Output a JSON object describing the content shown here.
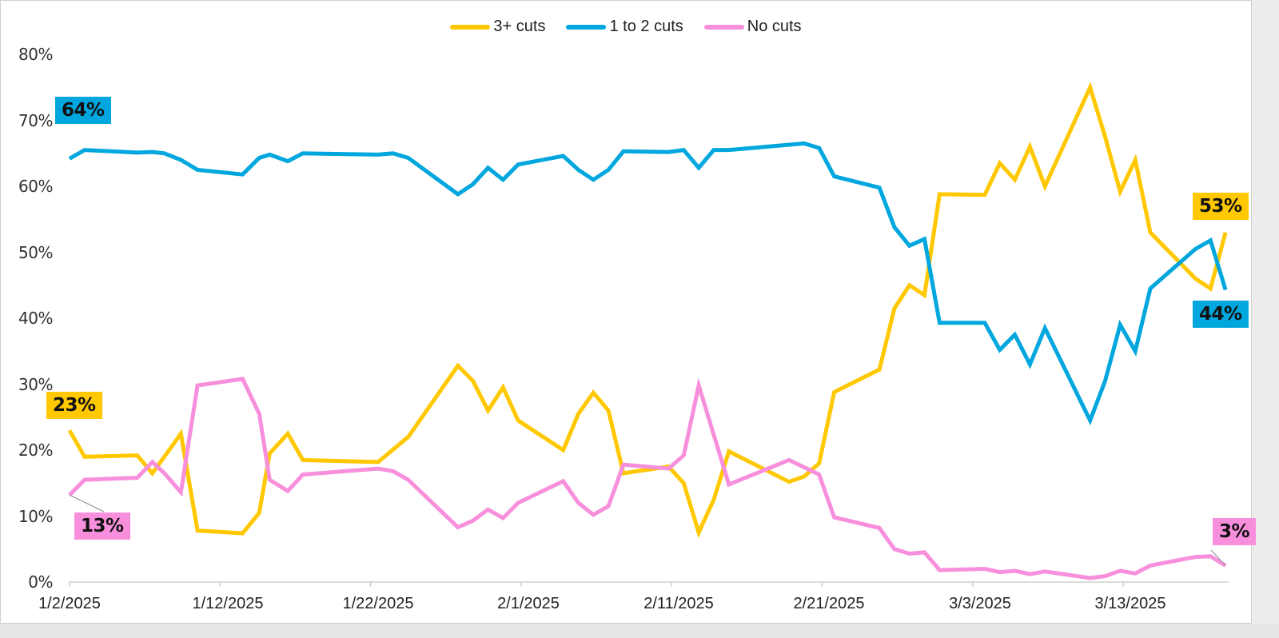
{
  "legend": {
    "items": [
      {
        "label": "3+ cuts",
        "color": "#FFC800"
      },
      {
        "label": "1 to 2 cuts",
        "color": "#00A7DE"
      },
      {
        "label": "No cuts",
        "color": "#F78FDC"
      }
    ]
  },
  "y_axis": {
    "ticks": [
      "80%",
      "70%",
      "60%",
      "50%",
      "40%",
      "30%",
      "20%",
      "10%",
      "0%"
    ]
  },
  "x_axis": {
    "ticks": [
      "1/2/2025",
      "1/12/2025",
      "1/22/2025",
      "2/1/2025",
      "2/11/2025",
      "2/21/2025",
      "3/3/2025",
      "3/13/2025"
    ]
  },
  "annotations": {
    "one_to_two_start": "64%",
    "three_plus_start": "23%",
    "no_cuts_start": "13%",
    "three_plus_end": "53%",
    "one_to_two_end": "44%",
    "no_cuts_end": "3%"
  },
  "chart_data": {
    "type": "line",
    "title": "",
    "xlabel": "",
    "ylabel": "",
    "ylim": [
      0,
      80
    ],
    "y_ticks": [
      0,
      10,
      20,
      30,
      40,
      50,
      60,
      70,
      80
    ],
    "x_tick_labels": [
      "1/2/2025",
      "1/12/2025",
      "1/22/2025",
      "2/1/2025",
      "2/11/2025",
      "2/21/2025",
      "3/3/2025",
      "3/13/2025"
    ],
    "legend_position": "top",
    "grid": false,
    "x_start_date": "1/2/2025",
    "x_unit": "days since 1/2/2025",
    "series": [
      {
        "name": "3+ cuts",
        "color": "#FFC800",
        "points": [
          [
            0,
            23
          ],
          [
            1,
            19
          ],
          [
            4.5,
            19.2
          ],
          [
            5.5,
            16.5
          ],
          [
            6.3,
            19
          ],
          [
            7.4,
            22.5
          ],
          [
            8.5,
            7.8
          ],
          [
            11.5,
            7.4
          ],
          [
            12.6,
            10.5
          ],
          [
            13.3,
            19.5
          ],
          [
            14.5,
            22.5
          ],
          [
            15.5,
            18.5
          ],
          [
            20.5,
            18.2
          ],
          [
            22.5,
            22
          ],
          [
            25.8,
            32.8
          ],
          [
            26.8,
            30.5
          ],
          [
            27.8,
            26
          ],
          [
            28.8,
            29.5
          ],
          [
            29.8,
            24.5
          ],
          [
            32.8,
            20
          ],
          [
            33.8,
            25.5
          ],
          [
            34.8,
            28.7
          ],
          [
            35.8,
            26
          ],
          [
            36.8,
            16.5
          ],
          [
            39.8,
            17.5
          ],
          [
            40.8,
            15
          ],
          [
            41.8,
            7.5
          ],
          [
            42.8,
            12.5
          ],
          [
            43.8,
            19.8
          ],
          [
            47.8,
            15.2
          ],
          [
            48.8,
            16
          ],
          [
            49.8,
            18
          ],
          [
            50.8,
            28.8
          ],
          [
            53.8,
            32.2
          ],
          [
            54.8,
            41.5
          ],
          [
            55.8,
            45
          ],
          [
            56.8,
            43.5
          ],
          [
            57.8,
            58.8
          ],
          [
            60.8,
            58.7
          ],
          [
            61.8,
            63.5
          ],
          [
            62.8,
            61
          ],
          [
            63.8,
            66
          ],
          [
            64.8,
            60
          ],
          [
            67.8,
            75
          ],
          [
            68.8,
            67.5
          ],
          [
            69.8,
            59.2
          ],
          [
            70.8,
            64
          ],
          [
            71.8,
            53
          ],
          [
            74.8,
            46
          ],
          [
            75.8,
            44.5
          ],
          [
            76.8,
            53
          ]
        ]
      },
      {
        "name": "1 to 2 cuts",
        "color": "#00A7DE",
        "points": [
          [
            0,
            64.2
          ],
          [
            1,
            65.5
          ],
          [
            4.5,
            65.1
          ],
          [
            5.5,
            65.2
          ],
          [
            6.3,
            65
          ],
          [
            7.4,
            64
          ],
          [
            8.5,
            62.5
          ],
          [
            11.5,
            61.8
          ],
          [
            12.6,
            64.3
          ],
          [
            13.3,
            64.8
          ],
          [
            14.5,
            63.8
          ],
          [
            15.5,
            65
          ],
          [
            20.5,
            64.8
          ],
          [
            21.5,
            65
          ],
          [
            22.5,
            64.3
          ],
          [
            25.8,
            58.8
          ],
          [
            26.8,
            60.3
          ],
          [
            27.8,
            62.8
          ],
          [
            28.8,
            61
          ],
          [
            29.8,
            63.3
          ],
          [
            32.8,
            64.6
          ],
          [
            33.8,
            62.5
          ],
          [
            34.8,
            61
          ],
          [
            35.8,
            62.5
          ],
          [
            36.8,
            65.3
          ],
          [
            39.8,
            65.2
          ],
          [
            40.8,
            65.5
          ],
          [
            41.8,
            62.8
          ],
          [
            42.8,
            65.5
          ],
          [
            43.8,
            65.5
          ],
          [
            48.8,
            66.5
          ],
          [
            49.8,
            65.8
          ],
          [
            50.8,
            61.5
          ],
          [
            53.8,
            59.8
          ],
          [
            54.8,
            53.8
          ],
          [
            55.8,
            51
          ],
          [
            56.8,
            52
          ],
          [
            57.8,
            39.3
          ],
          [
            60.8,
            39.3
          ],
          [
            61.8,
            35.2
          ],
          [
            62.8,
            37.5
          ],
          [
            63.8,
            33
          ],
          [
            64.8,
            38.5
          ],
          [
            67.8,
            24.5
          ],
          [
            68.8,
            30.5
          ],
          [
            69.8,
            39
          ],
          [
            70.8,
            35
          ],
          [
            71.8,
            44.5
          ],
          [
            74.8,
            50.5
          ],
          [
            75.8,
            51.8
          ],
          [
            76.8,
            44.3
          ]
        ]
      },
      {
        "name": "No cuts",
        "color": "#F78FDC",
        "points": [
          [
            0,
            13.2
          ],
          [
            1,
            15.5
          ],
          [
            4.5,
            15.8
          ],
          [
            5.5,
            18.2
          ],
          [
            6.3,
            16.5
          ],
          [
            7.4,
            13.6
          ],
          [
            8.5,
            29.8
          ],
          [
            11.5,
            30.8
          ],
          [
            12.6,
            25.5
          ],
          [
            13.3,
            15.5
          ],
          [
            14.5,
            13.8
          ],
          [
            15.5,
            16.3
          ],
          [
            20.5,
            17.2
          ],
          [
            21.5,
            16.8
          ],
          [
            22.5,
            15.5
          ],
          [
            25.8,
            8.3
          ],
          [
            26.8,
            9.3
          ],
          [
            27.8,
            11
          ],
          [
            28.8,
            9.7
          ],
          [
            29.8,
            12
          ],
          [
            32.8,
            15.3
          ],
          [
            33.8,
            12
          ],
          [
            34.8,
            10.2
          ],
          [
            35.8,
            11.5
          ],
          [
            36.8,
            17.8
          ],
          [
            39.8,
            17.2
          ],
          [
            40.8,
            19.2
          ],
          [
            41.8,
            29.8
          ],
          [
            43.8,
            14.8
          ],
          [
            47.8,
            18.5
          ],
          [
            49.8,
            16.3
          ],
          [
            50.8,
            9.8
          ],
          [
            53.8,
            8.2
          ],
          [
            54.8,
            5
          ],
          [
            55.8,
            4.3
          ],
          [
            56.8,
            4.5
          ],
          [
            57.8,
            1.8
          ],
          [
            60.8,
            2
          ],
          [
            61.8,
            1.5
          ],
          [
            62.8,
            1.7
          ],
          [
            63.8,
            1.2
          ],
          [
            64.8,
            1.6
          ],
          [
            67.8,
            0.6
          ],
          [
            68.8,
            0.9
          ],
          [
            69.8,
            1.7
          ],
          [
            70.8,
            1.3
          ],
          [
            71.8,
            2.5
          ],
          [
            74.8,
            3.8
          ],
          [
            75.8,
            3.9
          ],
          [
            76.8,
            2.5
          ]
        ]
      }
    ]
  }
}
